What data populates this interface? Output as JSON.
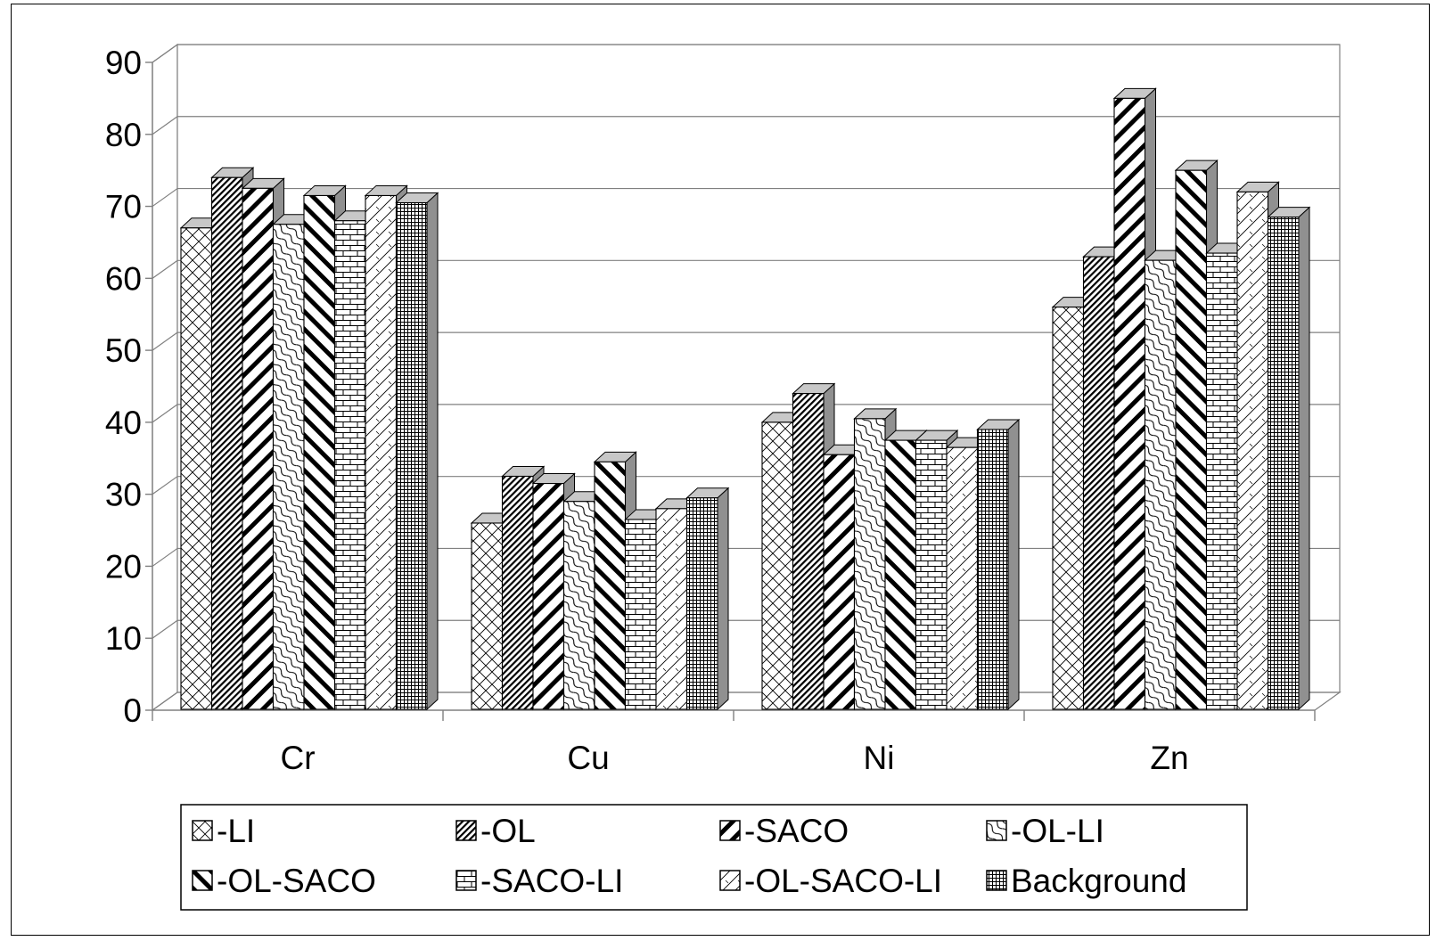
{
  "chart_data": {
    "type": "bar",
    "style": "3d-clustered-column",
    "categories": [
      "Cr",
      "Cu",
      "Ni",
      "Zn"
    ],
    "series": [
      {
        "name": "-LI",
        "pattern": "crosshatch-diag",
        "values": [
          67,
          26,
          40,
          56
        ]
      },
      {
        "name": "-OL",
        "pattern": "dense-diag",
        "values": [
          74,
          32.5,
          44,
          63
        ]
      },
      {
        "name": "-SACO",
        "pattern": "wide-diag",
        "values": [
          72.5,
          31.5,
          35.5,
          85
        ]
      },
      {
        "name": "-OL-LI",
        "pattern": "wave",
        "values": [
          67.5,
          29,
          40.5,
          62.5
        ]
      },
      {
        "name": "-OL-SACO",
        "pattern": "wide-back-diag",
        "values": [
          71.5,
          34.5,
          37.5,
          75
        ]
      },
      {
        "name": "-SACO-LI",
        "pattern": "brick",
        "values": [
          68,
          26.5,
          37.5,
          63.5
        ]
      },
      {
        "name": "-OL-SACO-LI",
        "pattern": "sparse-diag",
        "values": [
          71.5,
          28,
          36.5,
          72
        ]
      },
      {
        "name": "Background",
        "pattern": "grid",
        "values": [
          70.5,
          29.5,
          39,
          68.5
        ]
      }
    ],
    "ylim": [
      0,
      90
    ],
    "yticks": [
      "0",
      "10",
      "20",
      "30",
      "40",
      "50",
      "60",
      "70",
      "80",
      "90"
    ],
    "grid": true,
    "legend_position": "bottom",
    "colors": {
      "bar_front": "#ffffff",
      "bar_side": "#909090",
      "bar_top": "#c8c8c8",
      "ink": "#000000",
      "gridline": "#808080"
    }
  }
}
